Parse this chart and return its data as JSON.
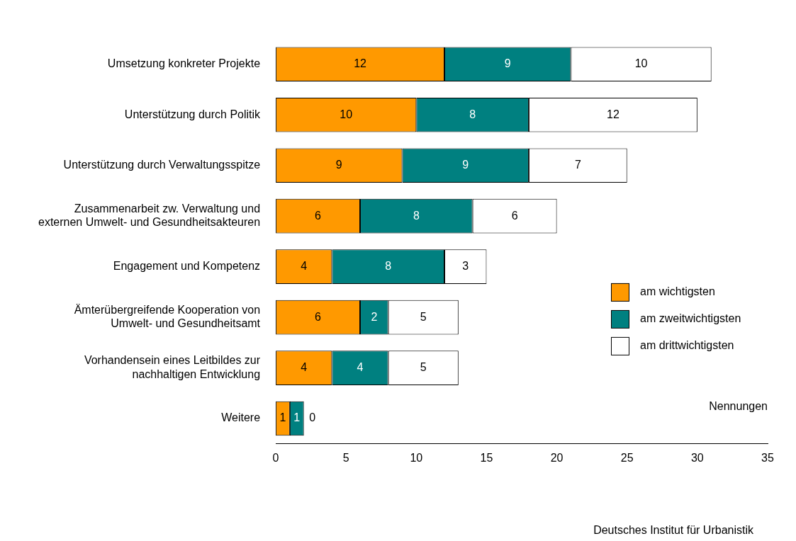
{
  "chart_data": {
    "type": "bar",
    "orientation": "horizontal",
    "stacked": true,
    "categories": [
      "Umsetzung konkreter Projekte",
      "Unterstützung durch Politik",
      "Unterstützung durch Verwaltungsspitze",
      "Zusammenarbeit zw. Verwaltung und\nexternen Umwelt- und Gesundheitsakteuren",
      "Engagement und Kompetenz",
      "Ämterübergreifende Kooperation von\nUmwelt- und Gesundheitsamt",
      "Vorhandensein eines Leitbildes zur\nnachhaltigen Entwicklung",
      "Weitere"
    ],
    "series": [
      {
        "name": "am wichtigsten",
        "color": "#ff9900",
        "values": [
          12,
          10,
          9,
          6,
          4,
          6,
          4,
          1
        ]
      },
      {
        "name": "am zweitwichtigsten",
        "color": "#008080",
        "values": [
          9,
          8,
          9,
          8,
          8,
          2,
          4,
          1
        ]
      },
      {
        "name": "am drittwichtigsten",
        "color": "#ffffff",
        "values": [
          10,
          12,
          7,
          6,
          3,
          5,
          5,
          0
        ]
      }
    ],
    "xlim": [
      0,
      35
    ],
    "xticks": [
      0,
      5,
      10,
      15,
      20,
      25,
      30,
      35
    ],
    "xlabel": "Nennungen",
    "data_labels": true,
    "grid": false,
    "legend": "right",
    "annotations": [
      "Deutsches Institut für Urbanistik"
    ]
  }
}
